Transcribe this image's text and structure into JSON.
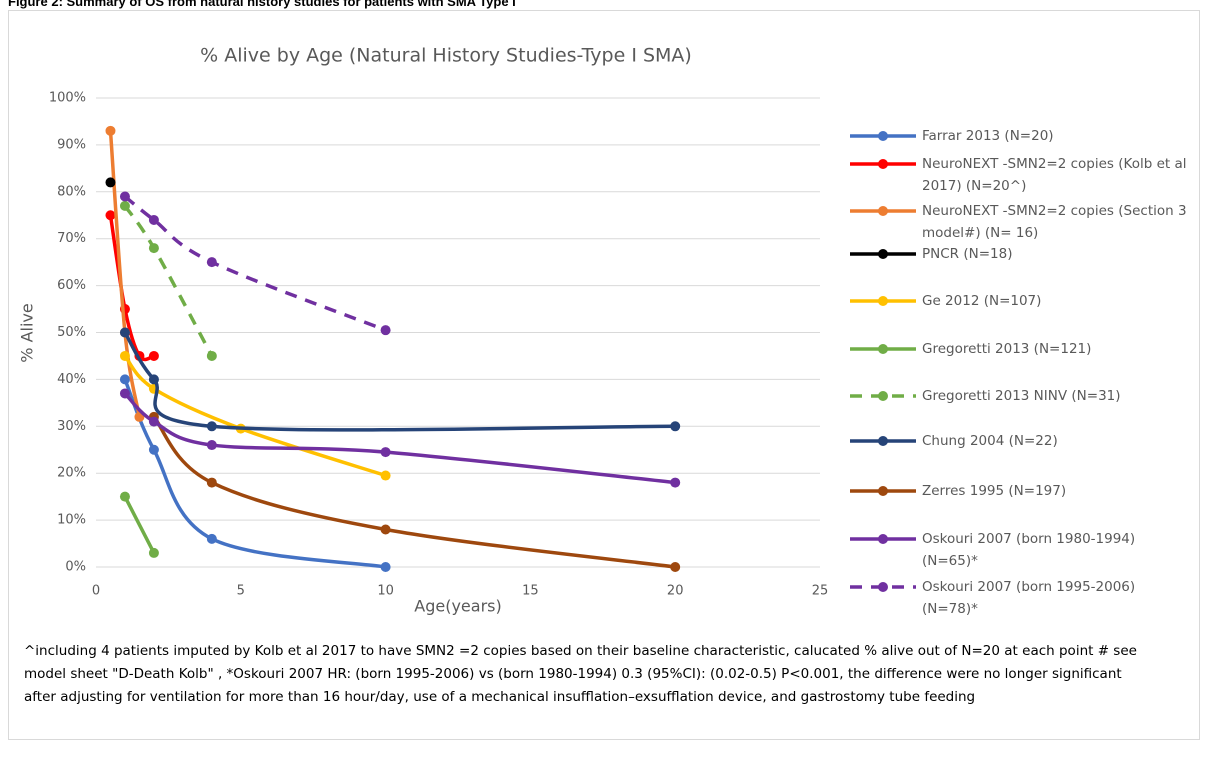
{
  "header": "Figure 2: Summary of OS from natural history studies for patients with SMA Type I",
  "chart_data": {
    "type": "line",
    "title": "% Alive by Age (Natural History Studies-Type I SMA)",
    "x_label": "Age(years)",
    "y_label": "% Alive",
    "xlim": [
      0,
      25
    ],
    "xticks": [
      0,
      5,
      10,
      15,
      20,
      25
    ],
    "ylim": [
      0,
      100
    ],
    "yticks": [
      {
        "value": 0,
        "label": "0%"
      },
      {
        "value": 10,
        "label": "10%"
      },
      {
        "value": 20,
        "label": "20%"
      },
      {
        "value": 30,
        "label": "30%"
      },
      {
        "value": 40,
        "label": "40%"
      },
      {
        "value": 50,
        "label": "50%"
      },
      {
        "value": 60,
        "label": "60%"
      },
      {
        "value": 70,
        "label": "70%"
      },
      {
        "value": 80,
        "label": "80%"
      },
      {
        "value": 90,
        "label": "90%"
      },
      {
        "value": 100,
        "label": "100%"
      }
    ],
    "grid": true,
    "legend": "right",
    "series": [
      {
        "name": "Farrar 2013 (N=20)",
        "color": "#4472c4",
        "dashed": false,
        "x": [
          1,
          2,
          4,
          10
        ],
        "values": [
          40,
          25,
          6,
          0
        ]
      },
      {
        "name": "NeuroNEXT -SMN2=2 copies (Kolb et al 2017) (N=20^)",
        "color": "#ff0000",
        "dashed": false,
        "x": [
          0.5,
          1,
          1.5,
          2
        ],
        "values": [
          75,
          55,
          45,
          45
        ]
      },
      {
        "name": "NeuroNEXT -SMN2=2 copies (Section 3 model#) (N= 16)",
        "color": "#ed7d31",
        "dashed": false,
        "x": [
          0.5,
          1,
          1.5
        ],
        "values": [
          93,
          50,
          32
        ]
      },
      {
        "name": "PNCR (N=18)",
        "color": "#000000",
        "dashed": false,
        "x": [
          0.5
        ],
        "values": [
          82
        ]
      },
      {
        "name": "Ge 2012 (N=107)",
        "color": "#ffc000",
        "dashed": false,
        "x": [
          1,
          2,
          5,
          10
        ],
        "values": [
          45,
          38,
          29.5,
          19.5
        ]
      },
      {
        "name": "Gregoretti 2013 (N=121)",
        "color": "#70ad47",
        "dashed": false,
        "x": [
          1,
          2
        ],
        "values": [
          15,
          3
        ]
      },
      {
        "name": "Gregoretti 2013 NINV (N=31)",
        "color": "#70ad47",
        "dashed": true,
        "x": [
          1,
          2,
          4
        ],
        "values": [
          77,
          68,
          45
        ]
      },
      {
        "name": "Chung 2004 (N=22)",
        "color": "#264478",
        "dashed": false,
        "x": [
          1,
          2,
          4,
          20
        ],
        "values": [
          50,
          40,
          30,
          30
        ]
      },
      {
        "name": "Zerres 1995 (N=197)",
        "color": "#9e480e",
        "dashed": false,
        "x": [
          2,
          4,
          10,
          20
        ],
        "values": [
          32,
          18,
          8,
          0
        ]
      },
      {
        "name": "Oskouri 2007 (born 1980-1994) (N=65)*",
        "color": "#7030a0",
        "dashed": false,
        "x": [
          1,
          2,
          4,
          10,
          20
        ],
        "values": [
          37,
          31,
          26,
          24.5,
          18
        ]
      },
      {
        "name": "Oskouri 2007 (born 1995-2006) (N=78)*",
        "color": "#7030a0",
        "dashed": true,
        "x": [
          1,
          2,
          4,
          10
        ],
        "values": [
          79,
          74,
          65,
          50.5
        ]
      }
    ],
    "footnote": "^including 4 patients imputed by Kolb et al 2017 to have SMN2 =2 copies based on their baseline characteristic, calucated % alive out of N=20 at each point # see model sheet \"D-Death Kolb\" , *Oskouri 2007 HR: (born 1995-2006) vs (born 1980-1994) 0.3 (95%CI): (0.02-0.5) P<0.001, the difference were no longer significant after adjusting for ventilation for more than 16 hour/day, use of a mechanical insufflation–exsufflation device, and gastrostomy tube feeding"
  }
}
